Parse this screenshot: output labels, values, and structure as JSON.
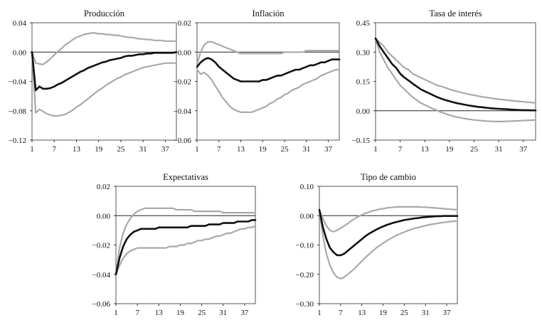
{
  "colors": {
    "estimate": "#111111",
    "bands": "#a9a9a9",
    "axis": "#222222",
    "frame": "#444444"
  },
  "chart_data": [
    {
      "type": "line",
      "title": "Producción",
      "x": [
        1,
        2,
        3,
        4,
        5,
        6,
        7,
        8,
        9,
        10,
        11,
        12,
        13,
        14,
        15,
        16,
        17,
        18,
        19,
        20,
        21,
        22,
        23,
        24,
        25,
        26,
        27,
        28,
        29,
        30,
        31,
        32,
        33,
        34,
        35,
        36,
        37,
        38,
        39,
        40
      ],
      "xticks": [
        1,
        7,
        13,
        19,
        25,
        31,
        37
      ],
      "xlim": [
        1,
        40
      ],
      "ylim": [
        -0.12,
        0.04
      ],
      "yticks": [
        0.04,
        0.0,
        -0.04,
        -0.08,
        -0.12
      ],
      "ytick_labels": [
        "0.04",
        "0.00",
        "−0.04",
        "−0.08",
        "−0.12"
      ],
      "series": [
        {
          "name": "estimate",
          "values": [
            0,
            -0.052,
            -0.047,
            -0.05,
            -0.05,
            -0.049,
            -0.047,
            -0.044,
            -0.042,
            -0.039,
            -0.036,
            -0.033,
            -0.03,
            -0.027,
            -0.025,
            -0.022,
            -0.02,
            -0.018,
            -0.016,
            -0.014,
            -0.013,
            -0.011,
            -0.01,
            -0.009,
            -0.008,
            -0.006,
            -0.005,
            -0.005,
            -0.004,
            -0.003,
            -0.003,
            -0.002,
            -0.002,
            -0.001,
            -0.001,
            -0.001,
            -0.001,
            -0.001,
            -0.001,
            0.0
          ]
        },
        {
          "name": "upper",
          "values": [
            0,
            -0.015,
            -0.016,
            -0.017,
            -0.013,
            -0.009,
            -0.004,
            0.001,
            0.005,
            0.01,
            0.013,
            0.017,
            0.02,
            0.022,
            0.024,
            0.025,
            0.026,
            0.026,
            0.025,
            0.025,
            0.024,
            0.024,
            0.023,
            0.023,
            0.022,
            0.021,
            0.02,
            0.02,
            0.019,
            0.018,
            0.018,
            0.017,
            0.017,
            0.016,
            0.016,
            0.016,
            0.015,
            0.015,
            0.015,
            0.015
          ]
        },
        {
          "name": "lower",
          "values": [
            0,
            -0.083,
            -0.078,
            -0.081,
            -0.084,
            -0.086,
            -0.087,
            -0.087,
            -0.086,
            -0.085,
            -0.082,
            -0.079,
            -0.075,
            -0.072,
            -0.068,
            -0.064,
            -0.06,
            -0.056,
            -0.052,
            -0.049,
            -0.045,
            -0.042,
            -0.039,
            -0.036,
            -0.034,
            -0.031,
            -0.029,
            -0.027,
            -0.025,
            -0.023,
            -0.021,
            -0.02,
            -0.019,
            -0.018,
            -0.017,
            -0.016,
            -0.015,
            -0.015,
            -0.015,
            -0.015
          ]
        }
      ]
    },
    {
      "type": "line",
      "title": "Inflación",
      "x": [
        1,
        2,
        3,
        4,
        5,
        6,
        7,
        8,
        9,
        10,
        11,
        12,
        13,
        14,
        15,
        16,
        17,
        18,
        19,
        20,
        21,
        22,
        23,
        24,
        25,
        26,
        27,
        28,
        29,
        30,
        31,
        32,
        33,
        34,
        35,
        36,
        37,
        38,
        39,
        40
      ],
      "xticks": [
        1,
        7,
        13,
        19,
        25,
        31,
        37
      ],
      "xlim": [
        1,
        40
      ],
      "ylim": [
        -0.06,
        0.02
      ],
      "yticks": [
        0.02,
        0.0,
        -0.02,
        -0.04,
        -0.06
      ],
      "ytick_labels": [
        "0.02",
        "0.00",
        "−0.02",
        "−0.04",
        "−0.06"
      ],
      "series": [
        {
          "name": "estimate",
          "values": [
            -0.01,
            -0.007,
            -0.005,
            -0.004,
            -0.005,
            -0.007,
            -0.01,
            -0.012,
            -0.014,
            -0.016,
            -0.018,
            -0.019,
            -0.02,
            -0.02,
            -0.02,
            -0.02,
            -0.02,
            -0.02,
            -0.019,
            -0.019,
            -0.018,
            -0.017,
            -0.016,
            -0.016,
            -0.015,
            -0.014,
            -0.013,
            -0.012,
            -0.012,
            -0.011,
            -0.01,
            -0.009,
            -0.009,
            -0.008,
            -0.007,
            -0.007,
            -0.006,
            -0.005,
            -0.005,
            -0.005
          ]
        },
        {
          "name": "upper",
          "values": [
            -0.008,
            0.0,
            0.005,
            0.007,
            0.007,
            0.006,
            0.005,
            0.004,
            0.003,
            0.002,
            0.001,
            0.0,
            -0.001,
            -0.001,
            -0.001,
            -0.001,
            -0.001,
            -0.001,
            -0.001,
            -0.001,
            -0.001,
            -0.001,
            -0.001,
            -0.001,
            0.0,
            0.0,
            0.0,
            0.0,
            0.0,
            0.0,
            0.001,
            0.001,
            0.001,
            0.001,
            0.001,
            0.001,
            0.001,
            0.001,
            0.001,
            0.001
          ]
        },
        {
          "name": "lower",
          "values": [
            -0.012,
            -0.015,
            -0.014,
            -0.016,
            -0.019,
            -0.023,
            -0.027,
            -0.031,
            -0.034,
            -0.037,
            -0.039,
            -0.04,
            -0.041,
            -0.041,
            -0.041,
            -0.041,
            -0.04,
            -0.039,
            -0.038,
            -0.037,
            -0.035,
            -0.034,
            -0.032,
            -0.031,
            -0.029,
            -0.028,
            -0.026,
            -0.025,
            -0.024,
            -0.022,
            -0.021,
            -0.02,
            -0.019,
            -0.018,
            -0.016,
            -0.015,
            -0.014,
            -0.013,
            -0.012,
            -0.012
          ]
        }
      ]
    },
    {
      "type": "line",
      "title": "Tasa de interés",
      "x": [
        1,
        2,
        3,
        4,
        5,
        6,
        7,
        8,
        9,
        10,
        11,
        12,
        13,
        14,
        15,
        16,
        17,
        18,
        19,
        20,
        21,
        22,
        23,
        24,
        25,
        26,
        27,
        28,
        29,
        30,
        31,
        32,
        33,
        34,
        35,
        36,
        37,
        38,
        39,
        40
      ],
      "xticks": [
        1,
        7,
        13,
        19,
        25,
        31,
        37
      ],
      "xlim": [
        1,
        40
      ],
      "ylim": [
        -0.15,
        0.45
      ],
      "yticks": [
        0.45,
        0.3,
        0.15,
        0.0,
        -0.15
      ],
      "ytick_labels": [
        "0.45",
        "0.30",
        "0.15",
        "0.00",
        "−0.15"
      ],
      "series": [
        {
          "name": "estimate",
          "values": [
            0.37,
            0.33,
            0.3,
            0.27,
            0.24,
            0.22,
            0.19,
            0.17,
            0.155,
            0.14,
            0.125,
            0.11,
            0.1,
            0.09,
            0.08,
            0.07,
            0.062,
            0.055,
            0.049,
            0.043,
            0.038,
            0.034,
            0.03,
            0.026,
            0.023,
            0.02,
            0.018,
            0.015,
            0.013,
            0.011,
            0.01,
            0.009,
            0.008,
            0.006,
            0.005,
            0.004,
            0.003,
            0.003,
            0.002,
            0.002
          ]
        },
        {
          "name": "upper",
          "values": [
            0.37,
            0.35,
            0.33,
            0.3,
            0.28,
            0.26,
            0.24,
            0.22,
            0.21,
            0.19,
            0.18,
            0.17,
            0.16,
            0.15,
            0.14,
            0.13,
            0.125,
            0.118,
            0.11,
            0.104,
            0.098,
            0.093,
            0.088,
            0.083,
            0.079,
            0.075,
            0.071,
            0.068,
            0.065,
            0.062,
            0.059,
            0.057,
            0.054,
            0.052,
            0.05,
            0.048,
            0.046,
            0.044,
            0.042,
            0.04
          ]
        },
        {
          "name": "lower",
          "values": [
            0.37,
            0.3,
            0.26,
            0.22,
            0.19,
            0.16,
            0.13,
            0.11,
            0.09,
            0.07,
            0.055,
            0.04,
            0.03,
            0.02,
            0.01,
            0.002,
            -0.008,
            -0.015,
            -0.022,
            -0.028,
            -0.033,
            -0.037,
            -0.041,
            -0.044,
            -0.047,
            -0.049,
            -0.051,
            -0.053,
            -0.054,
            -0.055,
            -0.055,
            -0.055,
            -0.054,
            -0.053,
            -0.052,
            -0.051,
            -0.05,
            -0.049,
            -0.048,
            -0.047
          ]
        }
      ]
    },
    {
      "type": "line",
      "title": "Expectativas",
      "x": [
        1,
        2,
        3,
        4,
        5,
        6,
        7,
        8,
        9,
        10,
        11,
        12,
        13,
        14,
        15,
        16,
        17,
        18,
        19,
        20,
        21,
        22,
        23,
        24,
        25,
        26,
        27,
        28,
        29,
        30,
        31,
        32,
        33,
        34,
        35,
        36,
        37,
        38,
        39,
        40
      ],
      "xticks": [
        1,
        7,
        13,
        19,
        25,
        31,
        37
      ],
      "xlim": [
        1,
        40
      ],
      "ylim": [
        -0.06,
        0.02
      ],
      "yticks": [
        0.02,
        0.0,
        -0.02,
        -0.04,
        -0.06
      ],
      "ytick_labels": [
        "0.02",
        "0.00",
        "−0.02",
        "−0.04",
        "−0.06"
      ],
      "series": [
        {
          "name": "estimate",
          "values": [
            -0.04,
            -0.029,
            -0.021,
            -0.016,
            -0.013,
            -0.011,
            -0.01,
            -0.009,
            -0.009,
            -0.009,
            -0.009,
            -0.009,
            -0.008,
            -0.008,
            -0.008,
            -0.008,
            -0.008,
            -0.008,
            -0.008,
            -0.008,
            -0.008,
            -0.007,
            -0.007,
            -0.007,
            -0.007,
            -0.007,
            -0.006,
            -0.006,
            -0.006,
            -0.006,
            -0.005,
            -0.005,
            -0.005,
            -0.005,
            -0.004,
            -0.004,
            -0.004,
            -0.004,
            -0.003,
            -0.003
          ]
        },
        {
          "name": "upper",
          "values": [
            -0.04,
            -0.022,
            -0.012,
            -0.006,
            -0.002,
            0.001,
            0.003,
            0.004,
            0.005,
            0.005,
            0.005,
            0.005,
            0.005,
            0.005,
            0.005,
            0.005,
            0.005,
            0.004,
            0.004,
            0.004,
            0.004,
            0.004,
            0.003,
            0.003,
            0.003,
            0.003,
            0.003,
            0.003,
            0.003,
            0.003,
            0.002,
            0.002,
            0.002,
            0.002,
            0.002,
            0.002,
            0.002,
            0.002,
            0.002,
            0.002
          ]
        },
        {
          "name": "lower",
          "values": [
            -0.04,
            -0.034,
            -0.029,
            -0.026,
            -0.024,
            -0.023,
            -0.022,
            -0.022,
            -0.022,
            -0.022,
            -0.022,
            -0.022,
            -0.022,
            -0.022,
            -0.022,
            -0.021,
            -0.021,
            -0.021,
            -0.02,
            -0.02,
            -0.019,
            -0.019,
            -0.018,
            -0.017,
            -0.017,
            -0.016,
            -0.016,
            -0.015,
            -0.014,
            -0.014,
            -0.013,
            -0.012,
            -0.012,
            -0.011,
            -0.01,
            -0.009,
            -0.009,
            -0.008,
            -0.008,
            -0.007
          ]
        }
      ]
    },
    {
      "type": "line",
      "title": "Tipo de cambio",
      "x": [
        1,
        2,
        3,
        4,
        5,
        6,
        7,
        8,
        9,
        10,
        11,
        12,
        13,
        14,
        15,
        16,
        17,
        18,
        19,
        20,
        21,
        22,
        23,
        24,
        25,
        26,
        27,
        28,
        29,
        30,
        31,
        32,
        33,
        34,
        35,
        36,
        37,
        38,
        39,
        40
      ],
      "xticks": [
        1,
        7,
        13,
        19,
        25,
        31,
        37
      ],
      "xlim": [
        1,
        40
      ],
      "ylim": [
        -0.3,
        0.1
      ],
      "yticks": [
        0.1,
        0.0,
        -0.1,
        -0.2,
        -0.3
      ],
      "ytick_labels": [
        "0.10",
        "0.00",
        "−0.10",
        "−0.20",
        "−0.30"
      ],
      "series": [
        {
          "name": "estimate",
          "values": [
            0.02,
            -0.04,
            -0.08,
            -0.11,
            -0.125,
            -0.135,
            -0.135,
            -0.13,
            -0.12,
            -0.11,
            -0.1,
            -0.09,
            -0.08,
            -0.07,
            -0.062,
            -0.055,
            -0.048,
            -0.042,
            -0.037,
            -0.032,
            -0.028,
            -0.024,
            -0.021,
            -0.018,
            -0.015,
            -0.013,
            -0.011,
            -0.009,
            -0.008,
            -0.006,
            -0.005,
            -0.004,
            -0.003,
            -0.002,
            -0.002,
            -0.001,
            -0.001,
            -0.001,
            -0.001,
            -0.001
          ]
        },
        {
          "name": "upper",
          "values": [
            0.02,
            -0.01,
            -0.035,
            -0.05,
            -0.055,
            -0.05,
            -0.043,
            -0.035,
            -0.027,
            -0.018,
            -0.01,
            -0.003,
            0.003,
            0.008,
            0.012,
            0.016,
            0.019,
            0.022,
            0.024,
            0.026,
            0.028,
            0.029,
            0.03,
            0.03,
            0.03,
            0.03,
            0.03,
            0.03,
            0.03,
            0.029,
            0.029,
            0.028,
            0.027,
            0.026,
            0.025,
            0.024,
            0.023,
            0.022,
            0.021,
            0.02
          ]
        },
        {
          "name": "lower",
          "values": [
            0.02,
            -0.07,
            -0.13,
            -0.17,
            -0.195,
            -0.21,
            -0.215,
            -0.21,
            -0.2,
            -0.19,
            -0.18,
            -0.167,
            -0.155,
            -0.143,
            -0.132,
            -0.121,
            -0.111,
            -0.102,
            -0.094,
            -0.086,
            -0.079,
            -0.072,
            -0.066,
            -0.061,
            -0.056,
            -0.051,
            -0.047,
            -0.043,
            -0.04,
            -0.037,
            -0.034,
            -0.031,
            -0.029,
            -0.027,
            -0.025,
            -0.023,
            -0.022,
            -0.02,
            -0.019,
            -0.018
          ]
        }
      ]
    }
  ]
}
